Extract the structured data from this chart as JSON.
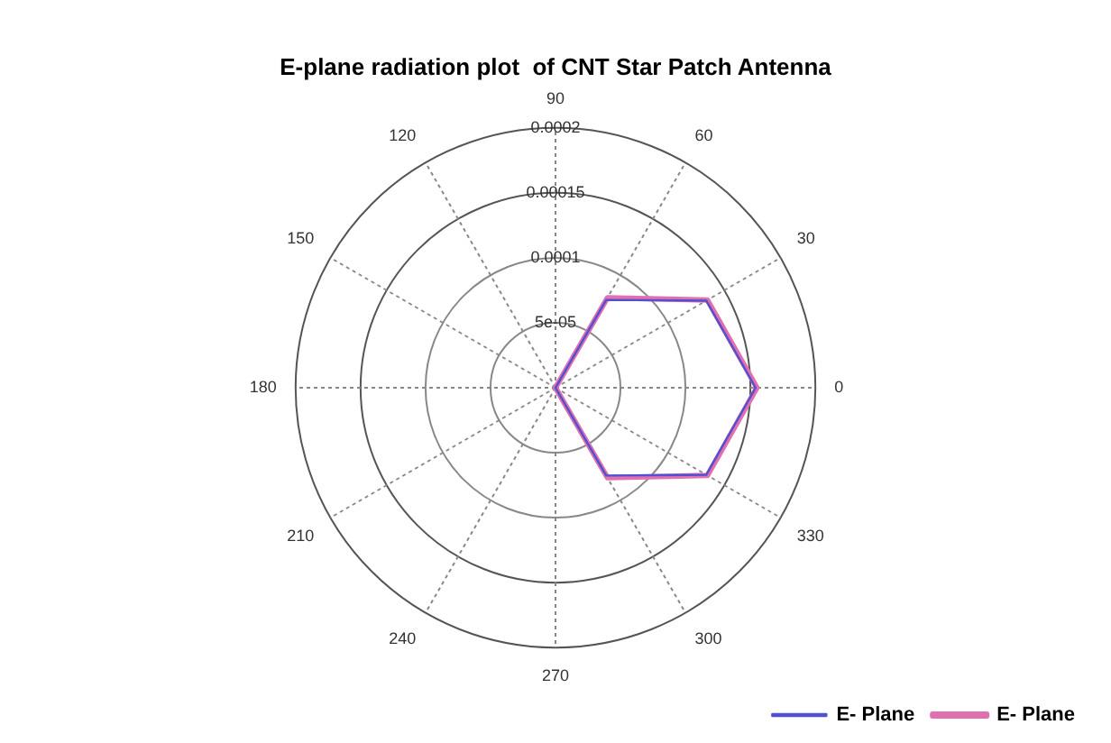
{
  "chart_data": {
    "type": "radar",
    "title": "E-plane radiation plot  of CNT Star Patch Antenna",
    "categories": [
      "90",
      "60",
      "30",
      "0",
      "330",
      "300",
      "270",
      "240",
      "210",
      "180",
      "150",
      "120"
    ],
    "series": [
      {
        "name": "E- Plane",
        "color": "#e070b0",
        "values": [
          0,
          8e-05,
          0.000135,
          0.000155,
          0.000135,
          8e-05,
          0,
          0,
          0,
          0,
          0,
          0
        ]
      },
      {
        "name": "E- Plane",
        "color": "#5050d0",
        "values": [
          0,
          7.8e-05,
          0.000134,
          0.000154,
          0.000134,
          7.8e-05,
          0,
          0,
          0,
          0,
          0,
          0
        ]
      }
    ],
    "ylim": [
      0,
      0.0002
    ],
    "yticks": [
      {
        "value": 5e-05,
        "label": "5e-05"
      },
      {
        "value": 0.0001,
        "label": "0.0001"
      },
      {
        "value": 0.00015,
        "label": "0.00015"
      },
      {
        "value": 0.0002,
        "label": "0.0002"
      }
    ],
    "grid": true,
    "legend": "bottom right",
    "marker": "none",
    "line_style": "solid"
  }
}
